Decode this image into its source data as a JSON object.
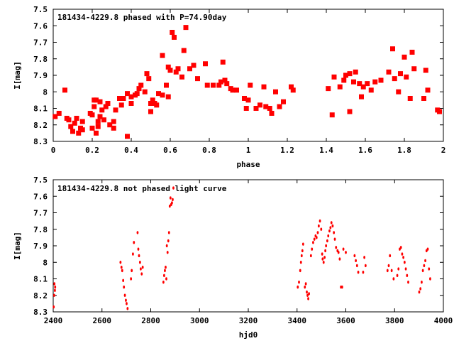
{
  "chart_data": [
    {
      "type": "scatter",
      "title": "181434-4229.8 phased with P=74.90day",
      "xlabel": "phase",
      "ylabel": "I[mag]",
      "xlim": [
        0,
        2
      ],
      "ylim": [
        8.3,
        7.5
      ],
      "y_inverted": true,
      "xticks": [
        0,
        0.2,
        0.4,
        0.6,
        0.8,
        1,
        1.2,
        1.4,
        1.6,
        1.8,
        2
      ],
      "xtick_labels": [
        "0",
        "0.2",
        "0.4",
        "0.6",
        "0.8",
        "1",
        "1.2",
        "1.4",
        "1.6",
        "1.8",
        "2"
      ],
      "yticks": [
        7.5,
        7.6,
        7.7,
        7.8,
        7.9,
        8,
        8.1,
        8.2,
        8.3
      ],
      "ytick_labels": [
        "7.5",
        "7.6",
        "7.7",
        "7.8",
        "7.9",
        "8",
        "8.1",
        "8.2",
        "8.3"
      ],
      "marker_color": "#ff0000",
      "marker": "square-x",
      "grid": false,
      "series": [
        {
          "x": [
            0.01,
            0.03,
            0.06,
            0.07,
            0.08,
            0.09,
            0.1,
            0.11,
            0.12,
            0.13,
            0.14,
            0.15,
            0.15,
            0.19,
            0.2,
            0.2,
            0.21,
            0.21,
            0.22,
            0.22,
            0.23,
            0.23,
            0.24,
            0.24,
            0.25,
            0.26,
            0.27,
            0.28,
            0.29,
            0.31,
            0.31,
            0.32,
            0.34,
            0.35,
            0.36,
            0.38,
            0.38,
            0.4,
            0.4,
            0.42,
            0.43,
            0.44,
            0.45,
            0.47,
            0.48,
            0.49,
            0.5,
            0.5,
            0.51,
            0.52,
            0.53,
            0.54,
            0.56,
            0.56,
            0.58,
            0.59,
            0.59,
            0.6,
            0.61,
            0.62,
            0.63,
            0.64,
            0.66,
            0.67,
            0.68,
            0.7,
            0.72,
            0.74,
            0.78,
            0.79,
            0.82,
            0.85,
            0.86,
            0.87,
            0.88,
            0.89,
            0.91,
            0.92,
            0.94,
            0.98,
            0.99,
            1,
            1.01,
            1.04,
            1.06,
            1.08,
            1.09,
            1.11,
            1.12,
            1.14,
            1.16,
            1.18,
            1.22,
            1.23,
            1.41,
            1.43,
            1.44,
            1.47,
            1.49,
            1.5,
            1.52,
            1.52,
            1.54,
            1.55,
            1.57,
            1.58,
            1.59,
            1.61,
            1.63,
            1.65,
            1.68,
            1.72,
            1.74,
            1.75,
            1.77,
            1.78,
            1.8,
            1.81,
            1.83,
            1.84,
            1.85,
            1.9,
            1.91,
            1.92,
            1.97,
            1.98
          ],
          "y": [
            8.15,
            8.13,
            7.99,
            8.16,
            8.17,
            8.21,
            8.24,
            8.19,
            8.16,
            8.25,
            8.22,
            8.18,
            8.23,
            8.13,
            8.14,
            8.22,
            8.09,
            8.05,
            8.25,
            8.05,
            8.18,
            8.21,
            8.06,
            8.15,
            8.11,
            8.17,
            8.09,
            8.07,
            8.2,
            8.18,
            8.22,
            8.11,
            8.04,
            8.08,
            8.04,
            8.01,
            8.27,
            8.07,
            8.03,
            8.02,
            8.01,
            7.98,
            7.96,
            8.0,
            7.89,
            7.92,
            8.07,
            8.12,
            8.05,
            8.07,
            8.08,
            8.01,
            7.78,
            8.02,
            7.96,
            7.85,
            8.03,
            7.87,
            7.64,
            7.67,
            7.88,
            7.86,
            7.91,
            7.75,
            7.61,
            7.86,
            7.84,
            7.92,
            7.83,
            7.96,
            7.96,
            7.96,
            7.94,
            7.82,
            7.93,
            7.95,
            7.98,
            7.99,
            7.99,
            8.04,
            8.1,
            8.05,
            7.96,
            8.1,
            8.08,
            7.97,
            8.09,
            8.1,
            8.13,
            8.0,
            8.09,
            8.06,
            7.97,
            7.99,
            7.98,
            8.14,
            7.91,
            7.97,
            7.93,
            7.9,
            8.12,
            7.89,
            7.94,
            7.88,
            7.95,
            8.03,
            7.97,
            7.95,
            7.99,
            7.94,
            7.93,
            7.88,
            7.74,
            7.92,
            8.0,
            7.89,
            7.79,
            7.91,
            8.04,
            7.76,
            7.86,
            8.04,
            7.87,
            7.99,
            8.11,
            8.12
          ]
        }
      ]
    },
    {
      "type": "scatter",
      "title": "181434-4229.8 not phased light curve",
      "xlabel": "hjd0",
      "ylabel": "I[mag]",
      "xlim": [
        2400,
        4000
      ],
      "ylim": [
        8.3,
        7.5
      ],
      "y_inverted": true,
      "xticks": [
        2400,
        2600,
        2800,
        3000,
        3200,
        3400,
        3600,
        3800,
        4000
      ],
      "xtick_labels": [
        "2400",
        "2600",
        "2800",
        "3000",
        "3200",
        "3400",
        "3600",
        "3800",
        "4000"
      ],
      "yticks": [
        7.5,
        7.6,
        7.7,
        7.8,
        7.9,
        8,
        8.1,
        8.2,
        8.3
      ],
      "ytick_labels": [
        "7.5",
        "7.6",
        "7.7",
        "7.8",
        "7.9",
        "8",
        "8.1",
        "8.2",
        "8.3"
      ],
      "marker_color": "#ff0000",
      "marker": "dot",
      "grid": false,
      "series": [
        {
          "x": [
            2402,
            2404,
            2405,
            2407,
            2408,
            2676,
            2680,
            2683,
            2687,
            2690,
            2694,
            2698,
            2701,
            2705,
            2719,
            2722,
            2727,
            2731,
            2746,
            2749,
            2752,
            2756,
            2759,
            2763,
            2767,
            2852,
            2855,
            2858,
            2861,
            2864,
            2866,
            2869,
            2872,
            2875,
            2878,
            2881,
            2884,
            2887,
            2890,
            2893,
            3403,
            3408,
            3413,
            3416,
            3419,
            3422,
            3425,
            3432,
            3436,
            3440,
            3443,
            3446,
            3449,
            3457,
            3461,
            3466,
            3471,
            3476,
            3480,
            3485,
            3489,
            3494,
            3499,
            3503,
            3505,
            3509,
            3513,
            3516,
            3519,
            3524,
            3528,
            3533,
            3537,
            3541,
            3546,
            3551,
            3555,
            3560,
            3566,
            3570,
            3575,
            3580,
            3585,
            3590,
            3600,
            3636,
            3641,
            3646,
            3651,
            3671,
            3676,
            3681,
            3771,
            3776,
            3781,
            3788,
            3796,
            3811,
            3816,
            3821,
            3826,
            3831,
            3836,
            3841,
            3846,
            3851,
            3856,
            3901,
            3906,
            3911,
            3916,
            3921,
            3926,
            3931,
            3936,
            3941,
            3946
          ],
          "y": [
            8.27,
            8.2,
            8.13,
            8.17,
            8.15,
            8.0,
            8.03,
            8.05,
            8.11,
            8.15,
            8.2,
            8.23,
            8.25,
            8.28,
            8.1,
            8.05,
            7.95,
            7.88,
            7.82,
            7.92,
            7.96,
            8.0,
            8.04,
            8.07,
            8.03,
            8.12,
            8.08,
            8.05,
            8.03,
            8.1,
            7.9,
            7.94,
            7.87,
            7.82,
            7.66,
            7.61,
            7.65,
            7.64,
            7.62,
            7.55,
            8.15,
            8.12,
            8.05,
            8.0,
            7.96,
            7.93,
            7.89,
            8.15,
            8.13,
            8.18,
            8.2,
            8.22,
            8.19,
            7.96,
            7.92,
            7.88,
            7.86,
            7.84,
            7.85,
            7.82,
            7.78,
            7.75,
            7.8,
            7.95,
            7.98,
            8.0,
            7.97,
            7.93,
            7.9,
            7.87,
            7.84,
            7.81,
            7.79,
            7.76,
            7.78,
            7.82,
            7.86,
            7.91,
            7.93,
            7.94,
            7.98,
            8.15,
            8.15,
            7.92,
            7.94,
            7.96,
            7.99,
            8.02,
            8.06,
            8.06,
            7.97,
            8.02,
            8.05,
            8.02,
            7.96,
            8.05,
            8.1,
            8.08,
            8.04,
            7.92,
            7.91,
            7.95,
            7.97,
            8.0,
            8.04,
            8.08,
            8.12,
            8.18,
            8.16,
            8.12,
            8.05,
            8.02,
            7.99,
            7.93,
            7.92,
            8.04,
            8.1
          ]
        }
      ]
    }
  ]
}
